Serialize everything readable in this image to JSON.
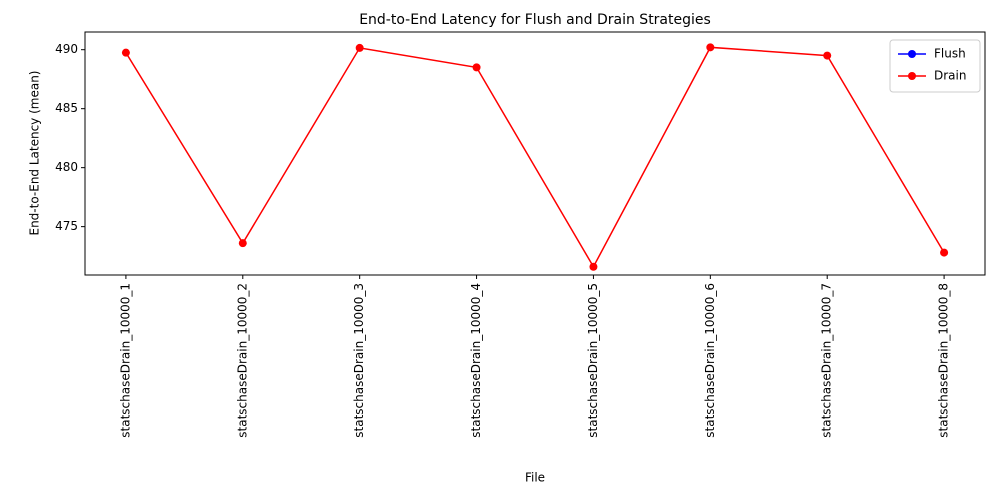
{
  "chart_data": {
    "type": "line",
    "title": "End-to-End Latency for Flush and Drain Strategies",
    "xlabel": "File",
    "ylabel": "End-to-End Latency (mean)",
    "categories": [
      "statschaseDrain_10000_1",
      "statschaseDrain_10000_2",
      "statschaseDrain_10000_3",
      "statschaseDrain_10000_4",
      "statschaseDrain_10000_5",
      "statschaseDrain_10000_6",
      "statschaseDrain_10000_7",
      "statschaseDrain_10000_8"
    ],
    "series": [
      {
        "name": "Flush",
        "color": "#0000ff",
        "values": [
          null,
          null,
          null,
          null,
          null,
          null,
          null,
          null
        ]
      },
      {
        "name": "Drain",
        "color": "#ff0000",
        "values": [
          489.75,
          473.6,
          490.15,
          488.5,
          471.6,
          490.2,
          489.5,
          472.8
        ]
      }
    ],
    "ylim": [
      470.9,
      491.5
    ],
    "yticks": [
      475,
      480,
      485,
      490
    ],
    "legend": "upper right"
  }
}
